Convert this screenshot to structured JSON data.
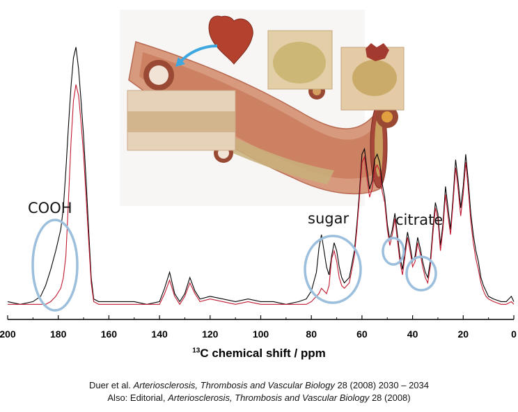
{
  "chart_data": {
    "type": "line",
    "xlabel_sup": "13",
    "xlabel_main": "C chemical shift / ppm",
    "xlim": [
      200,
      0
    ],
    "x_reversed": true,
    "x_ticks": [
      200,
      180,
      160,
      140,
      120,
      100,
      80,
      60,
      40,
      20,
      0
    ],
    "grid": false,
    "series": [
      {
        "color": "#000000",
        "x": [
          200,
          195,
          190,
          187,
          185,
          183,
          181,
          179,
          178,
          177,
          176,
          175,
          174,
          173,
          172,
          171,
          170,
          169,
          168,
          167,
          166,
          164,
          160,
          155,
          150,
          145,
          140,
          138,
          136,
          134,
          132,
          130,
          128,
          126,
          124,
          120,
          115,
          110,
          105,
          100,
          95,
          90,
          85,
          82,
          80,
          78,
          77,
          76,
          75,
          74,
          73,
          72,
          71,
          70,
          69,
          68,
          67,
          66,
          65,
          64,
          63,
          62,
          61,
          60,
          59,
          58,
          57,
          56,
          55,
          54,
          53,
          52,
          51,
          50,
          49,
          48,
          47,
          46,
          45,
          44,
          43,
          42,
          41,
          40,
          39,
          38,
          37,
          36,
          35,
          34,
          33,
          32,
          31,
          30,
          29,
          28,
          27,
          26,
          25,
          24,
          23,
          22,
          21,
          20,
          19,
          18,
          17,
          16,
          15,
          14,
          13,
          12,
          11,
          10,
          8,
          5,
          3,
          1,
          0
        ],
        "y": [
          3,
          2,
          3,
          5,
          9,
          15,
          22,
          30,
          38,
          52,
          68,
          83,
          94,
          98,
          90,
          78,
          65,
          48,
          30,
          12,
          4,
          3,
          3,
          3,
          3,
          2,
          3,
          8,
          14,
          6,
          3,
          6,
          12,
          7,
          4,
          5,
          4,
          3,
          4,
          3,
          3,
          2,
          3,
          4,
          7,
          14,
          23,
          28,
          22,
          16,
          13,
          20,
          25,
          22,
          16,
          12,
          10,
          11,
          12,
          17,
          22,
          32,
          44,
          58,
          60,
          52,
          45,
          48,
          56,
          58,
          55,
          47,
          42,
          32,
          26,
          30,
          36,
          28,
          20,
          15,
          22,
          29,
          24,
          18,
          20,
          27,
          23,
          18,
          14,
          12,
          18,
          30,
          40,
          36,
          24,
          32,
          46,
          38,
          30,
          42,
          56,
          48,
          38,
          46,
          58,
          48,
          36,
          28,
          22,
          18,
          12,
          9,
          7,
          5,
          4,
          3,
          3,
          5,
          3
        ]
      },
      {
        "color": "#c0182f",
        "x": [
          200,
          195,
          190,
          187,
          185,
          183,
          181,
          179,
          178,
          177,
          176,
          175,
          174,
          173,
          172,
          171,
          170,
          169,
          168,
          167,
          166,
          164,
          160,
          155,
          150,
          145,
          140,
          138,
          136,
          134,
          132,
          130,
          128,
          126,
          124,
          120,
          115,
          110,
          105,
          100,
          95,
          90,
          85,
          82,
          80,
          78,
          77,
          76,
          75,
          74,
          73,
          72,
          71,
          70,
          69,
          68,
          67,
          66,
          65,
          64,
          63,
          62,
          61,
          60,
          59,
          58,
          57,
          56,
          55,
          54,
          53,
          52,
          51,
          50,
          49,
          48,
          47,
          46,
          45,
          44,
          43,
          42,
          41,
          40,
          39,
          38,
          37,
          36,
          35,
          34,
          33,
          32,
          31,
          30,
          29,
          28,
          27,
          26,
          25,
          24,
          23,
          22,
          21,
          20,
          19,
          18,
          17,
          16,
          15,
          14,
          13,
          12,
          11,
          10,
          8,
          5,
          3,
          1,
          0
        ],
        "y": [
          2,
          2,
          2,
          2,
          2,
          3,
          5,
          8,
          12,
          20,
          40,
          62,
          78,
          84,
          80,
          70,
          58,
          42,
          26,
          10,
          3,
          2,
          2,
          2,
          2,
          2,
          2,
          6,
          11,
          5,
          2,
          5,
          10,
          6,
          3,
          4,
          3,
          2,
          3,
          2,
          2,
          2,
          2,
          2,
          3,
          5,
          6,
          8,
          7,
          6,
          9,
          19,
          22,
          18,
          12,
          9,
          8,
          9,
          10,
          15,
          20,
          30,
          42,
          55,
          57,
          49,
          42,
          45,
          52,
          54,
          52,
          44,
          40,
          30,
          24,
          28,
          34,
          26,
          18,
          13,
          20,
          27,
          22,
          16,
          18,
          25,
          21,
          16,
          12,
          10,
          16,
          28,
          38,
          34,
          22,
          30,
          43,
          35,
          28,
          40,
          53,
          45,
          35,
          43,
          55,
          45,
          33,
          25,
          19,
          15,
          10,
          7,
          5,
          4,
          3,
          2,
          2,
          3,
          2
        ]
      }
    ],
    "annotations": [
      {
        "text": "COOH",
        "x": 182
      },
      {
        "text": "sugar",
        "x": 72
      },
      {
        "text": "citrate",
        "x": 40
      }
    ]
  },
  "labels": {
    "cooh": "COOH",
    "sugar": "sugar",
    "citrate": "citrate"
  },
  "citation": {
    "line1_prefix": "Duer et al. ",
    "line1_journal": "Arteriosclerosis, Thrombosis and Vascular Biology",
    "line1_suffix": " 28 (2008) 2030 – 2034",
    "line2_prefix": "Also: Editorial, ",
    "line2_journal": "Arteriosclerosis, Thrombosis and Vascular Biology",
    "line2_suffix": " 28 (2008)"
  },
  "colors": {
    "ellipse": "#9bbfdc",
    "black_trace": "#000000",
    "red_trace": "#c0182f"
  }
}
